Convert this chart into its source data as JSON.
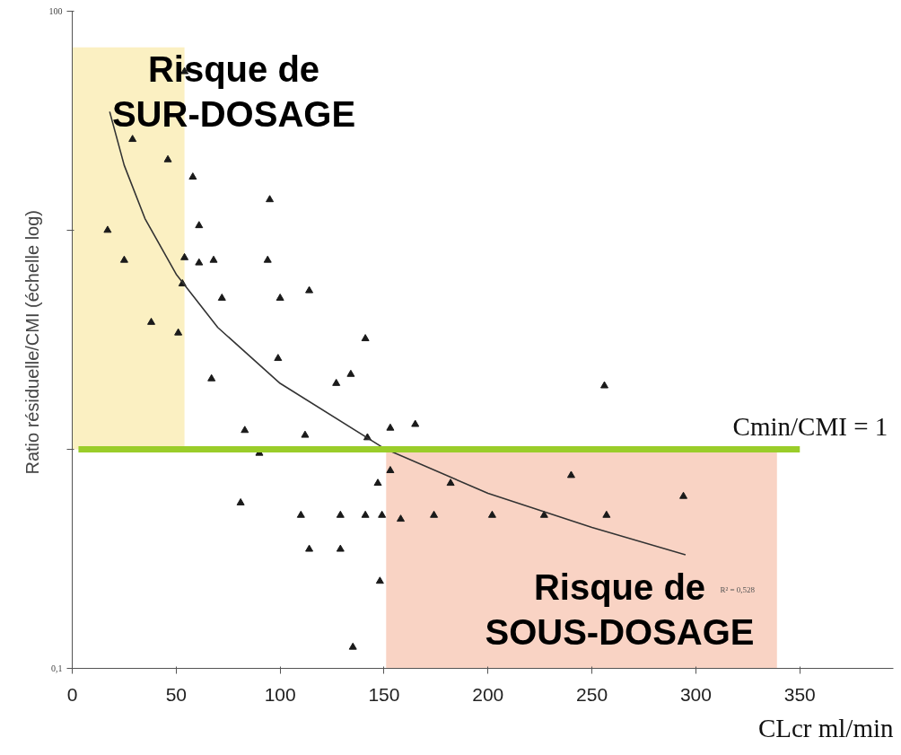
{
  "chart_data": {
    "type": "scatter",
    "xlabel": "CLcr ml/min",
    "ylabel": "Ratio résiduelle/CMI  (échelle log)",
    "log": "y",
    "grid": false,
    "xlim": [
      0,
      395
    ],
    "ylim": [
      0.1,
      100
    ],
    "xticks": [
      0,
      50,
      100,
      150,
      200,
      250,
      300,
      350
    ],
    "yticks": [
      {
        "value": 0.1,
        "label": "0,1"
      },
      {
        "value": 1,
        "label": null
      },
      {
        "value": 10,
        "label": null
      },
      100
    ],
    "series": [
      {
        "marker": "triangle",
        "color": "#1a1a1a",
        "x": [
          54,
          29,
          46,
          58,
          95,
          61,
          17,
          25,
          54,
          61,
          68,
          94,
          53,
          72,
          100,
          114,
          38,
          51,
          141,
          99,
          67,
          127,
          134,
          83,
          112,
          142,
          153,
          90,
          153,
          147,
          81,
          110,
          129,
          141,
          149,
          158,
          114,
          129,
          148,
          135,
          256,
          165,
          240,
          182,
          294,
          174,
          202,
          227,
          257
        ],
        "values": [
          53,
          26,
          21,
          17.5,
          13.8,
          10.5,
          10,
          7.3,
          7.5,
          7.1,
          7.3,
          7.3,
          5.7,
          4.9,
          4.9,
          5.3,
          3.8,
          3.4,
          3.2,
          2.6,
          2.1,
          2.0,
          2.2,
          1.22,
          1.16,
          1.13,
          1.25,
          0.96,
          0.8,
          0.7,
          0.57,
          0.5,
          0.5,
          0.5,
          0.5,
          0.48,
          0.35,
          0.35,
          0.25,
          0.125,
          1.95,
          1.3,
          0.76,
          0.7,
          0.61,
          0.5,
          0.5,
          0.5,
          0.5
        ]
      },
      {
        "type": "line",
        "color": "#333333",
        "x": [
          18,
          25,
          35,
          50,
          70,
          100,
          150,
          200,
          250,
          295
        ],
        "values": [
          34.8,
          19.8,
          11.3,
          6.3,
          3.6,
          2.0,
          1.01,
          0.63,
          0.44,
          0.33
        ]
      }
    ],
    "ref_lines": [
      {
        "axis": "y",
        "value": 1,
        "label": "Cmin/CMI = 1",
        "color": "#9acd2a"
      }
    ],
    "bands": [
      {
        "axis": "x",
        "from": 0,
        "to": 54,
        "color": "#fbf0c2"
      },
      {
        "axis": "x",
        "from": 151,
        "to": 339,
        "color": "#f9d3c4"
      }
    ],
    "annotations": [
      "Risque de\nSUR-DOSAGE",
      "Risque de\nSOUS-DOSAGE",
      "R² = 0,528"
    ]
  }
}
